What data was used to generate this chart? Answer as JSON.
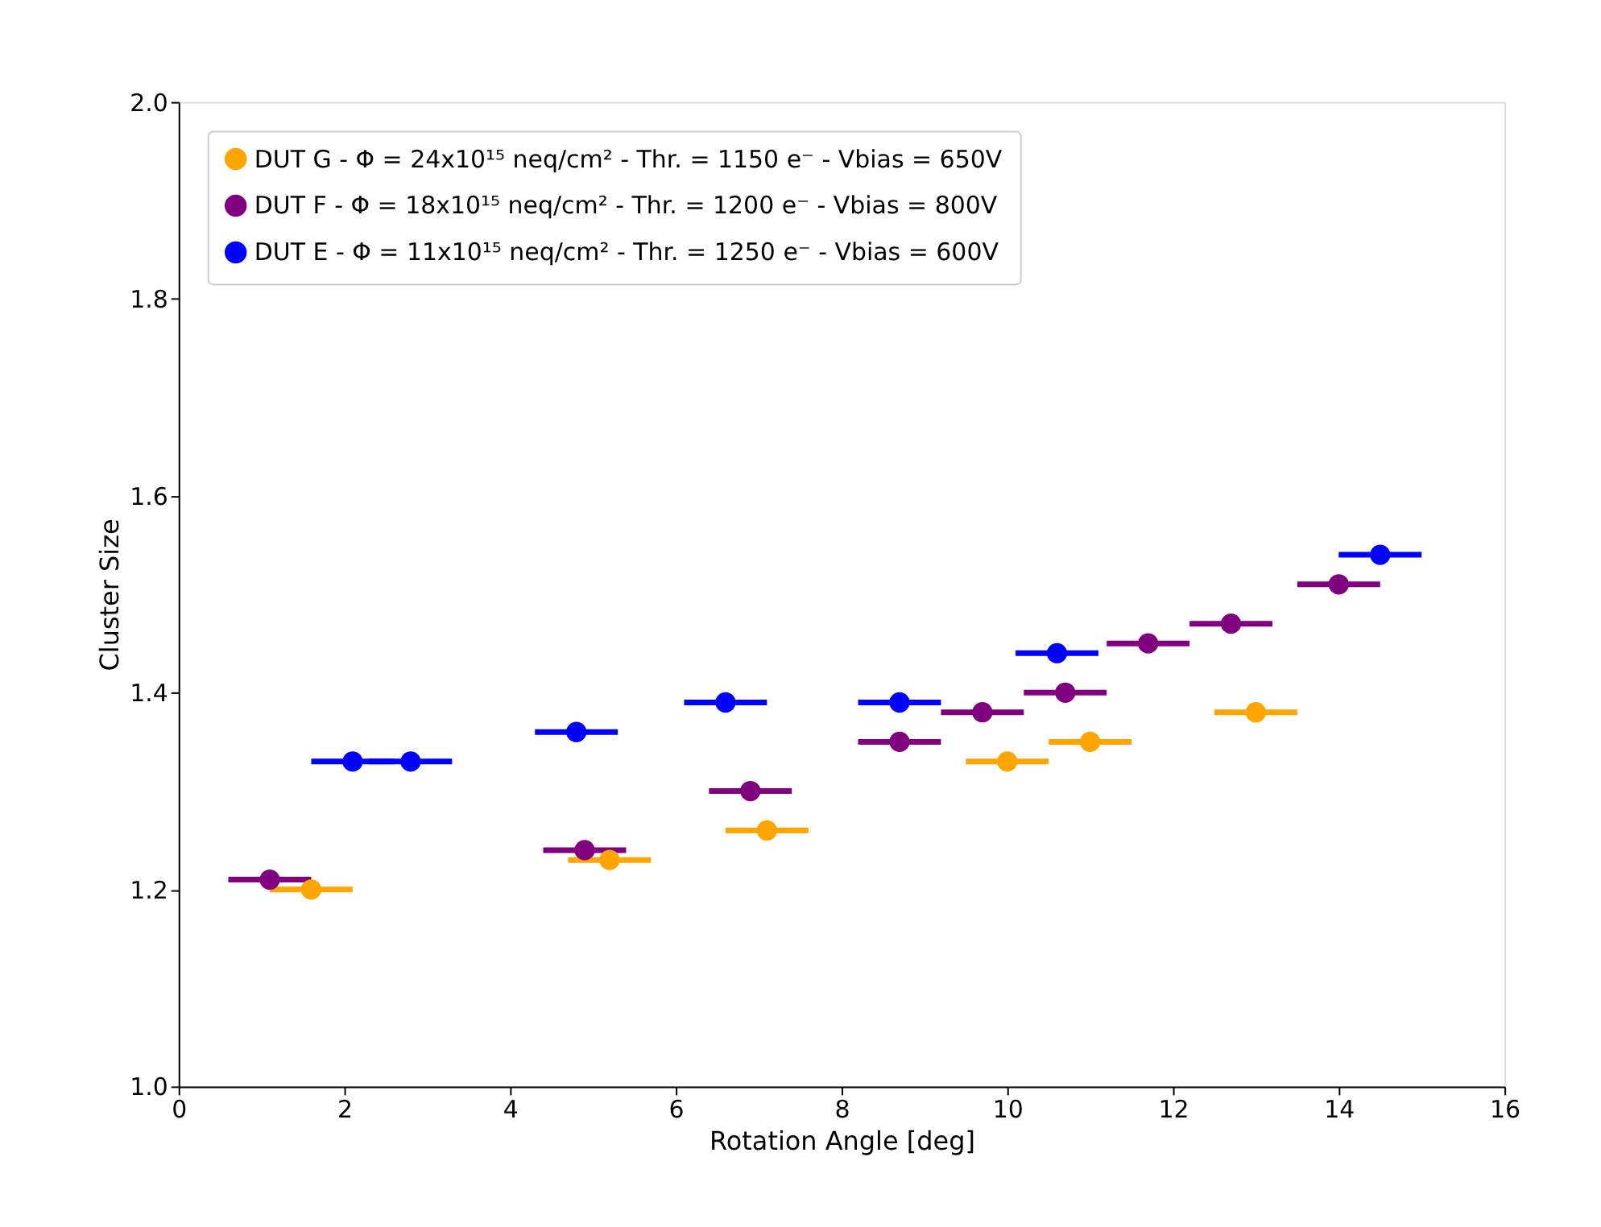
{
  "chart_data": {
    "type": "scatter",
    "xlabel": "Rotation Angle [deg]",
    "ylabel": "Cluster Size",
    "xlim": [
      0,
      16
    ],
    "xticks": [
      0,
      2,
      4,
      6,
      8,
      10,
      12,
      14,
      16
    ],
    "ylim": [
      1.0,
      2.0
    ],
    "yticks": [
      {
        "value": 1.0,
        "label": "1.0"
      },
      {
        "value": 1.2,
        "label": "1.2"
      },
      {
        "value": 1.4,
        "label": "1.4"
      },
      {
        "value": 1.6,
        "label": "1.6"
      },
      {
        "value": 1.8,
        "label": "1.8"
      },
      {
        "value": 2.0,
        "label": "2.0"
      }
    ],
    "grid": false,
    "legend": "top left",
    "marker": "circle",
    "series": [
      {
        "name": "DUT G - Φ = 24x10¹⁵ neq/cm² - Thr. = 1150 e⁻ - Vbias = 650V",
        "color": "#ffa500",
        "x": [
          1.6,
          5.2,
          7.1,
          10.0,
          11.0,
          13.0
        ],
        "values": [
          1.2,
          1.23,
          1.26,
          1.33,
          1.35,
          1.38
        ],
        "xerrors": [
          0.5,
          0.5,
          0.5,
          0.5,
          0.5,
          0.5
        ]
      },
      {
        "name": "DUT F - Φ = 18x10¹⁵ neq/cm² - Thr. = 1200 e⁻ - Vbias = 800V",
        "color": "#800080",
        "x": [
          1.1,
          4.9,
          6.9,
          8.7,
          9.7,
          10.7,
          11.7,
          12.7,
          14.0
        ],
        "values": [
          1.21,
          1.24,
          1.3,
          1.35,
          1.38,
          1.4,
          1.45,
          1.47,
          1.51
        ],
        "xerrors": [
          0.5,
          0.5,
          0.5,
          0.5,
          0.5,
          0.5,
          0.5,
          0.5,
          0.5
        ]
      },
      {
        "name": "DUT E - Φ = 11x10¹⁵ neq/cm² - Thr. = 1250 e⁻ - Vbias = 600V",
        "color": "#0000ff",
        "x": [
          2.1,
          2.8,
          4.8,
          6.6,
          8.7,
          10.6,
          14.5
        ],
        "values": [
          1.33,
          1.33,
          1.36,
          1.39,
          1.39,
          1.44,
          1.54
        ],
        "xerrors": [
          0.5,
          0.5,
          0.5,
          0.5,
          0.5,
          0.5,
          0.5
        ]
      }
    ]
  }
}
